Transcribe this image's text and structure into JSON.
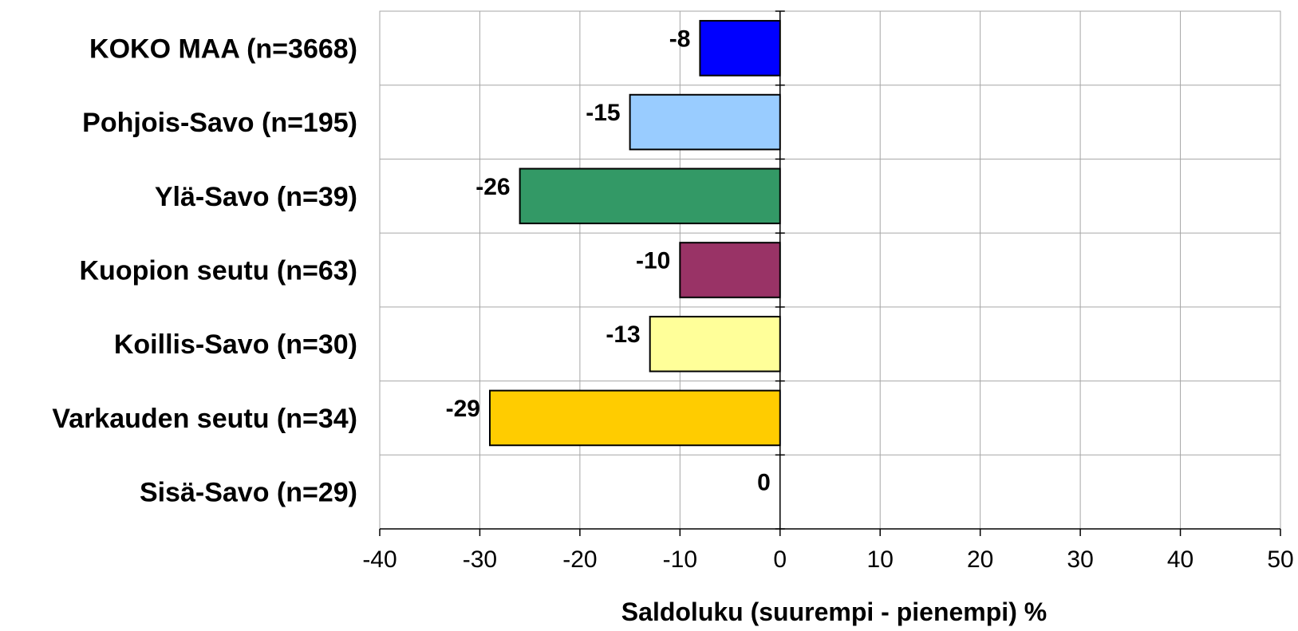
{
  "chart_data": {
    "type": "bar",
    "orientation": "horizontal",
    "categories": [
      "KOKO MAA (n=3668)",
      "Pohjois-Savo (n=195)",
      "Ylä-Savo (n=39)",
      "Kuopion seutu (n=63)",
      "Koillis-Savo (n=30)",
      "Varkauden seutu (n=34)",
      "Sisä-Savo (n=29)"
    ],
    "values": [
      -8,
      -15,
      -26,
      -10,
      -13,
      -29,
      0
    ],
    "data_labels": [
      "-8",
      "-15",
      "-26",
      "-10",
      "-13",
      "-29",
      "0"
    ],
    "colors": [
      "#0000ff",
      "#99ccff",
      "#339966",
      "#993366",
      "#ffff99",
      "#ffcc00",
      "#ffffff"
    ],
    "xlabel": "Saldoluku (suurempi - pienempi) %",
    "ylabel": "",
    "xlim": [
      -40,
      50
    ],
    "xticks": [
      -40,
      -30,
      -20,
      -10,
      0,
      10,
      20,
      30,
      40,
      50
    ],
    "xtick_labels": [
      "-40",
      "-30",
      "-20",
      "-10",
      "0",
      "10",
      "20",
      "30",
      "40",
      "50"
    ],
    "grid": true,
    "legend": "none"
  }
}
